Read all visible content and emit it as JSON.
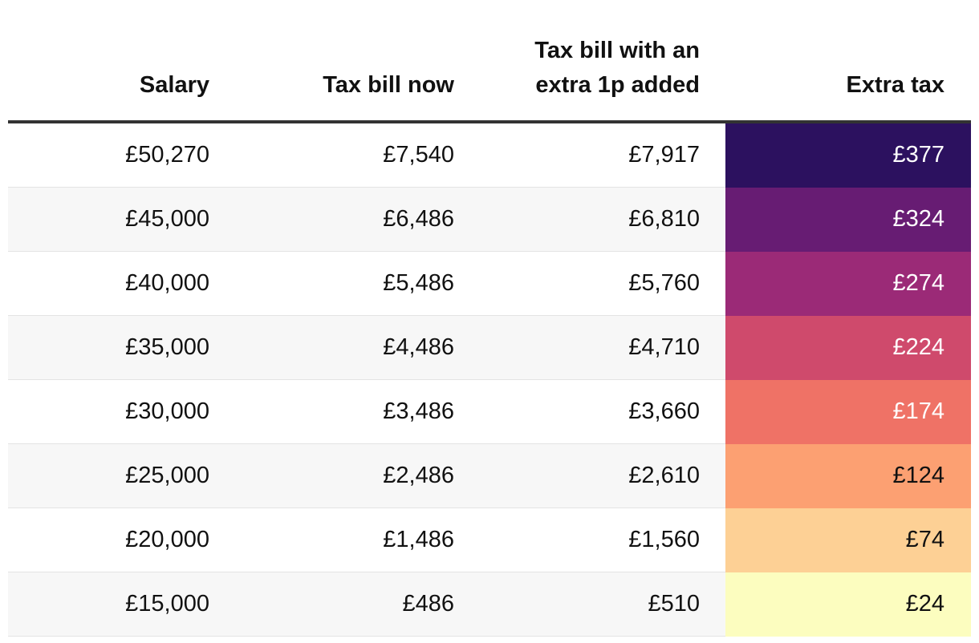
{
  "chart_data": {
    "type": "table",
    "columns": [
      "Salary",
      "Tax bill now",
      "Tax bill with an extra 1p added",
      "Extra tax"
    ],
    "rows": [
      {
        "salary": "£50,270",
        "tax_now": "£7,540",
        "tax_extra": "£7,917",
        "extra_tax": "£377",
        "extra_value": 377,
        "bg": "#2c115f",
        "fg": "#ffffff"
      },
      {
        "salary": "£45,000",
        "tax_now": "£6,486",
        "tax_extra": "£6,810",
        "extra_tax": "£324",
        "extra_value": 324,
        "bg": "#671c73",
        "fg": "#ffffff"
      },
      {
        "salary": "£40,000",
        "tax_now": "£5,486",
        "tax_extra": "£5,760",
        "extra_tax": "£274",
        "extra_value": 274,
        "bg": "#9b2a77",
        "fg": "#ffffff"
      },
      {
        "salary": "£35,000",
        "tax_now": "£4,486",
        "tax_extra": "£4,710",
        "extra_tax": "£224",
        "extra_value": 224,
        "bg": "#cf4a6c",
        "fg": "#ffffff"
      },
      {
        "salary": "£30,000",
        "tax_now": "£3,486",
        "tax_extra": "£3,660",
        "extra_tax": "£174",
        "extra_value": 174,
        "bg": "#ef7266",
        "fg": "#ffffff"
      },
      {
        "salary": "£25,000",
        "tax_now": "£2,486",
        "tax_extra": "£2,610",
        "extra_tax": "£124",
        "extra_value": 124,
        "bg": "#fca072",
        "fg": "#111111"
      },
      {
        "salary": "£20,000",
        "tax_now": "£1,486",
        "tax_extra": "£1,560",
        "extra_tax": "£74",
        "extra_value": 74,
        "bg": "#fdd095",
        "fg": "#111111"
      },
      {
        "salary": "£15,000",
        "tax_now": "£486",
        "tax_extra": "£510",
        "extra_tax": "£24",
        "extra_value": 24,
        "bg": "#fcfdbf",
        "fg": "#111111"
      }
    ]
  }
}
